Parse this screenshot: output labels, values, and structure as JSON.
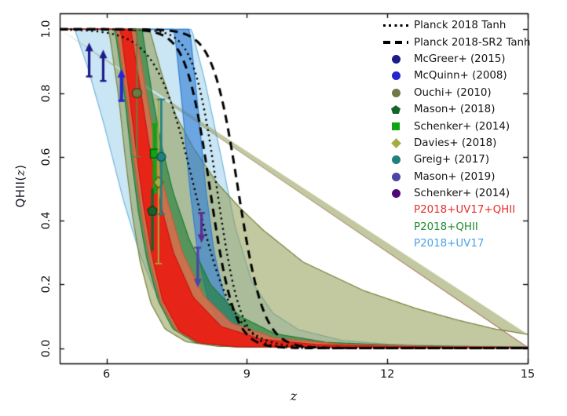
{
  "axes": {
    "xlabel": "z",
    "ylabel_prefix": "QHII(",
    "ylabel_var": "z",
    "ylabel_suffix": ")",
    "xtick_labels": [
      "6",
      "9",
      "12",
      "15"
    ],
    "ytick_labels": [
      "0.0",
      "0.2",
      "0.4",
      "0.6",
      "0.8",
      "1.0"
    ]
  },
  "chart_data": {
    "type": "line",
    "title": "",
    "xlabel": "z",
    "ylabel": "QHII(z)",
    "xlim": [
      5,
      15
    ],
    "ylim": [
      -0.048,
      1.05
    ],
    "grid": false,
    "legend_position": "upper right",
    "xticks": [
      6,
      9,
      12,
      15
    ],
    "yticks": [
      0.0,
      0.2,
      0.4,
      0.6,
      0.8,
      1.0
    ],
    "bands": [
      {
        "name": "p2018-uv17-95",
        "label": "P2018+UV17 95% CI",
        "fill": "rgba(158,208,235,0.55)",
        "edge": "#6fb7de",
        "upper": [
          [
            5,
            1
          ],
          [
            7.82,
            1
          ],
          [
            8.1,
            0.84
          ],
          [
            8.45,
            0.6
          ],
          [
            8.75,
            0.38
          ],
          [
            9.1,
            0.21
          ],
          [
            9.55,
            0.11
          ],
          [
            10.1,
            0.058
          ],
          [
            11,
            0.025
          ],
          [
            12,
            0.012
          ],
          [
            13.5,
            0.006
          ],
          [
            15,
            0.004
          ]
        ],
        "lower": [
          [
            5,
            1
          ],
          [
            5.32,
            1
          ],
          [
            5.6,
            0.88
          ],
          [
            5.95,
            0.7
          ],
          [
            6.35,
            0.47
          ],
          [
            6.7,
            0.3
          ],
          [
            7.0,
            0.19
          ],
          [
            7.35,
            0.1
          ],
          [
            7.75,
            0.04
          ],
          [
            8.2,
            0.012
          ],
          [
            9,
            0.003
          ],
          [
            15,
            0.001
          ]
        ]
      },
      {
        "name": "p2018-qhii-95",
        "label": "P2018+QHII 95% CI",
        "fill": "rgba(143,155,80,0.55)",
        "edge": "#71813a",
        "upper": [
          [
            5,
            1
          ],
          [
            6.92,
            1
          ],
          [
            7.18,
            0.86
          ],
          [
            7.48,
            0.73
          ],
          [
            7.85,
            0.63
          ],
          [
            8.35,
            0.52
          ],
          [
            8.85,
            0.44
          ],
          [
            9.35,
            0.37
          ],
          [
            10.2,
            0.27
          ],
          [
            11.5,
            0.18
          ],
          [
            12.6,
            0.125
          ],
          [
            13.5,
            0.088
          ],
          [
            14.3,
            0.06
          ],
          [
            15,
            0.043
          ]
        ],
        "lower": [
          [
            5,
            1
          ],
          [
            6.05,
            1
          ],
          [
            6.25,
            0.8
          ],
          [
            6.4,
            0.6
          ],
          [
            6.55,
            0.42
          ],
          [
            6.72,
            0.27
          ],
          [
            6.95,
            0.14
          ],
          [
            7.25,
            0.06
          ],
          [
            7.7,
            0.02
          ],
          [
            8.4,
            0.005
          ],
          [
            15,
            0.001
          ]
        ]
      },
      {
        "name": "p2018-uv17-68",
        "label": "P2018+UV17 68% CI",
        "fill": "rgba(45,125,215,0.60)",
        "edge": "#2f7fd4",
        "upper": [
          [
            5,
            1
          ],
          [
            7.78,
            1
          ],
          [
            7.95,
            0.76
          ],
          [
            8.12,
            0.5
          ],
          [
            8.3,
            0.3
          ],
          [
            8.52,
            0.16
          ],
          [
            8.85,
            0.065
          ],
          [
            9.35,
            0.022
          ],
          [
            10.2,
            0.008
          ],
          [
            15,
            0.003
          ]
        ],
        "lower": [
          [
            5,
            1
          ],
          [
            7.45,
            1
          ],
          [
            7.62,
            0.76
          ],
          [
            7.78,
            0.5
          ],
          [
            7.95,
            0.3
          ],
          [
            8.15,
            0.16
          ],
          [
            8.45,
            0.06
          ],
          [
            8.9,
            0.02
          ],
          [
            9.6,
            0.007
          ],
          [
            15,
            0.002
          ]
        ]
      },
      {
        "name": "p2018-qhii-68",
        "label": "P2018+QHII 68% CI",
        "fill": "rgba(32,125,52,0.62)",
        "edge": "#1d7a33",
        "upper": [
          [
            5,
            1
          ],
          [
            6.76,
            1
          ],
          [
            6.97,
            0.8
          ],
          [
            7.17,
            0.64
          ],
          [
            7.42,
            0.49
          ],
          [
            7.77,
            0.34
          ],
          [
            8.22,
            0.2
          ],
          [
            8.85,
            0.1
          ],
          [
            9.6,
            0.045
          ],
          [
            10.7,
            0.018
          ],
          [
            12.5,
            0.007
          ],
          [
            15,
            0.003
          ]
        ],
        "lower": [
          [
            5,
            1
          ],
          [
            6.18,
            1
          ],
          [
            6.38,
            0.8
          ],
          [
            6.53,
            0.6
          ],
          [
            6.68,
            0.43
          ],
          [
            6.86,
            0.28
          ],
          [
            7.1,
            0.15
          ],
          [
            7.42,
            0.06
          ],
          [
            7.9,
            0.018
          ],
          [
            8.7,
            0.004
          ],
          [
            15,
            0.001
          ]
        ]
      },
      {
        "name": "p2018-uv17-qhii-95",
        "label": "P2018+UV17+QHII 95% CI",
        "fill": "rgba(235,105,75,0.78), ",
        "edge": "#d4563a",
        "upper": [
          [
            5,
            1
          ],
          [
            6.62,
            1
          ],
          [
            6.85,
            0.8
          ],
          [
            7.05,
            0.62
          ],
          [
            7.3,
            0.46
          ],
          [
            7.62,
            0.3
          ],
          [
            8.07,
            0.165
          ],
          [
            8.67,
            0.078
          ],
          [
            9.6,
            0.032
          ],
          [
            11,
            0.012
          ],
          [
            13,
            0.005
          ],
          [
            15,
            0.003
          ]
        ],
        "lower": [
          [
            5,
            1
          ],
          [
            6.22,
            1
          ],
          [
            6.44,
            0.78
          ],
          [
            6.6,
            0.58
          ],
          [
            6.75,
            0.42
          ],
          [
            6.93,
            0.27
          ],
          [
            7.17,
            0.14
          ],
          [
            7.5,
            0.055
          ],
          [
            7.95,
            0.018
          ],
          [
            8.7,
            0.005
          ],
          [
            15,
            0.001
          ]
        ]
      },
      {
        "name": "p2018-uv17-qhii-68",
        "label": "P2018+UV17+QHII 68% CI",
        "fill": "rgba(233,32,21,0.95)",
        "edge": "#c51a10",
        "upper": [
          [
            5,
            1
          ],
          [
            6.52,
            1
          ],
          [
            6.74,
            0.8
          ],
          [
            6.93,
            0.62
          ],
          [
            7.14,
            0.46
          ],
          [
            7.43,
            0.3
          ],
          [
            7.85,
            0.16
          ],
          [
            8.45,
            0.068
          ],
          [
            9.3,
            0.028
          ],
          [
            10.5,
            0.011
          ],
          [
            12,
            0.005
          ],
          [
            15,
            0.002
          ]
        ],
        "lower": [
          [
            5,
            1
          ],
          [
            6.3,
            1
          ],
          [
            6.5,
            0.78
          ],
          [
            6.65,
            0.6
          ],
          [
            6.8,
            0.44
          ],
          [
            6.97,
            0.29
          ],
          [
            7.2,
            0.15
          ],
          [
            7.55,
            0.055
          ],
          [
            8.0,
            0.016
          ],
          [
            8.8,
            0.004
          ],
          [
            15,
            0.001
          ]
        ]
      }
    ],
    "curves": [
      {
        "name": "planck2018-tanh-lower",
        "label": "Planck 2018 Tanh",
        "style": "dotted",
        "z0": 7.88,
        "w": 0.83
      },
      {
        "name": "planck2018-tanh-upper",
        "label": "Planck 2018 Tanh",
        "style": "dotted",
        "z0": 8.36,
        "w": 0.5
      },
      {
        "name": "planck2018-sr2-tanh-lower",
        "label": "Planck 2018-SR2 Tanh",
        "style": "dashed",
        "z0": 8.21,
        "w": 0.51
      },
      {
        "name": "planck2018-sr2-tanh-upper",
        "label": "Planck 2018-SR2 Tanh",
        "style": "dashed",
        "z0": 8.81,
        "w": 0.54
      }
    ],
    "points": [
      {
        "name": "mcgreer-2015-a",
        "label": "McGreer+ (2015)",
        "type": "lower-limit",
        "marker": "arrow-up",
        "color": "#1b1b8a",
        "z": 5.63,
        "from": 0.852,
        "to": 0.958,
        "lw": 3.2
      },
      {
        "name": "mcgreer-2015-b",
        "label": "McGreer+ (2015)",
        "type": "lower-limit",
        "marker": "arrow-up",
        "color": "#1b1b8a",
        "z": 5.93,
        "from": 0.838,
        "to": 0.936,
        "lw": 3.2
      },
      {
        "name": "mcquinn-2008",
        "label": "McQuinn+ (2008)",
        "type": "lower-limit",
        "marker": "arrow-up",
        "color": "#2626cf",
        "z": 6.32,
        "from": 0.776,
        "to": 0.876,
        "lw": 4.2
      },
      {
        "name": "ouchi-2010",
        "label": "Ouchi+ (2010)",
        "type": "point",
        "marker": "circle",
        "color": "#6e7a45",
        "edge": "#394218",
        "z": 6.65,
        "q": 0.8,
        "err_lo": 0.6,
        "err_hi": 1.0,
        "cap": true,
        "cap_w": 5.5,
        "bar_lw": 2,
        "size": 6
      },
      {
        "name": "schenker-2014-z7",
        "label": "Schenker+ (2014)",
        "type": "point",
        "marker": "square",
        "color": "#12a312",
        "edge": "#06510a",
        "z": 7.03,
        "q": 0.61,
        "err_lo": 0.49,
        "err_hi": 0.7,
        "cap": true,
        "cap_w": 3.5,
        "bar_lw": 5,
        "size": 5.5
      },
      {
        "name": "mason-2018",
        "label": "Mason+ (2018)",
        "type": "point",
        "marker": "pentagon",
        "color": "#17642b",
        "edge": "#0b3a17",
        "z": 6.98,
        "q": 0.43,
        "err_lo": 0.305,
        "err_hi": 0.5,
        "cap": false,
        "cap_w": 0,
        "bar_lw": 3.5,
        "size": 6.5
      },
      {
        "name": "davies-2018",
        "label": "Davies+ (2018)",
        "type": "point",
        "marker": "diamond",
        "color": "#a3ad3f",
        "edge": "#55591c",
        "z": 7.11,
        "q": 0.52,
        "err_lo": 0.265,
        "err_hi": 0.78,
        "cap": true,
        "cap_w": 4.5,
        "bar_lw": 2,
        "size": 6
      },
      {
        "name": "greig-2017",
        "label": "Greig+ (2017)",
        "type": "point",
        "marker": "circle",
        "color": "#1f8080",
        "edge": "#0f4d4d",
        "z": 7.17,
        "q": 0.6,
        "err_lo": 0.42,
        "err_hi": 0.78,
        "cap": true,
        "cap_w": 5,
        "bar_lw": 2.6,
        "size": 5.5
      },
      {
        "name": "schenker-2014-z8",
        "label": "Schenker+ (2014)",
        "type": "upper-limit",
        "marker": "arrow-down",
        "color": "#5c2d91",
        "z": 8.03,
        "from": 0.424,
        "to": 0.33,
        "lw": 3.2
      },
      {
        "name": "mason-2019",
        "label": "Mason+ (2019)",
        "type": "upper-limit",
        "marker": "arrow-down",
        "color": "#4d44a8",
        "z": 7.95,
        "from": 0.315,
        "to": 0.19,
        "lw": 3.2
      }
    ],
    "legend": [
      {
        "glyph": "dotted-line",
        "color": "#000000",
        "label": "Planck 2018 Tanh"
      },
      {
        "glyph": "dashed-line",
        "color": "#000000",
        "label": "Planck 2018-SR2 Tanh"
      },
      {
        "glyph": "circle",
        "color": "#1b1b8a",
        "label": "McGreer+ (2015)"
      },
      {
        "glyph": "circle",
        "color": "#2626cf",
        "label": "McQuinn+ (2008)"
      },
      {
        "glyph": "circle",
        "color": "#6e7a45",
        "label": "Ouchi+ (2010)"
      },
      {
        "glyph": "pentagon",
        "color": "#17642b",
        "label": "Mason+ (2018)"
      },
      {
        "glyph": "square",
        "color": "#12a312",
        "label": "Schenker+ (2014)"
      },
      {
        "glyph": "diamond",
        "color": "#a3ad3f",
        "label": "Davies+ (2018)"
      },
      {
        "glyph": "circle",
        "color": "#1f8080",
        "label": "Greig+ (2017)"
      },
      {
        "glyph": "circle",
        "color": "#4d44a8",
        "label": "Mason+ (2019)"
      },
      {
        "glyph": "circle",
        "color": "#4d0a77",
        "label": "Schenker+ (2014)"
      },
      {
        "glyph": "none",
        "color": "#e62e2e",
        "label": "P2018+UV17+QHII",
        "text_color": "#e62e2e"
      },
      {
        "glyph": "none",
        "color": "#1f8c2f",
        "label": "P2018+QHII",
        "text_color": "#1f8c2f"
      },
      {
        "glyph": "none",
        "color": "#4aa2e8",
        "label": "P2018+UV17",
        "text_color": "#4aa2e8"
      }
    ]
  }
}
